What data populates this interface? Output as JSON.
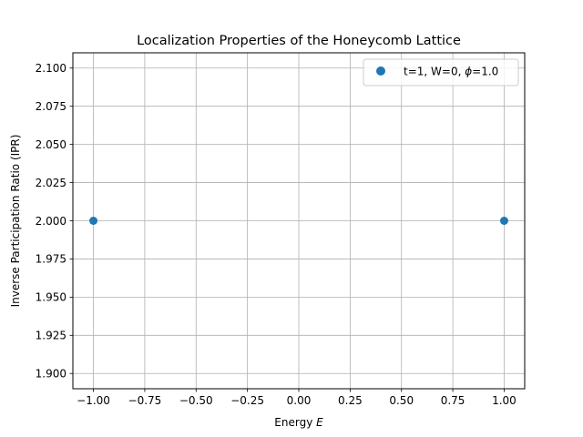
{
  "chart_data": {
    "type": "scatter",
    "title": "Localization Properties of the Honeycomb Lattice",
    "xlabel_text": "Energy ",
    "xlabel_var": "E",
    "ylabel": "Inverse Participation Ratio (IPR)",
    "xlim": [
      -1.1,
      1.1
    ],
    "ylim": [
      1.89,
      2.11
    ],
    "xticks": [
      -1.0,
      -0.75,
      -0.5,
      -0.25,
      0.0,
      0.25,
      0.5,
      0.75,
      1.0
    ],
    "xtick_labels": [
      "−1.00",
      "−0.75",
      "−0.50",
      "−0.25",
      "0.00",
      "0.25",
      "0.50",
      "0.75",
      "1.00"
    ],
    "yticks": [
      1.9,
      1.925,
      1.95,
      1.975,
      2.0,
      2.025,
      2.05,
      2.075,
      2.1
    ],
    "ytick_labels": [
      "1.900",
      "1.925",
      "1.950",
      "1.975",
      "2.000",
      "2.025",
      "2.050",
      "2.075",
      "2.100"
    ],
    "grid": true,
    "legend_position": "top-right",
    "series": [
      {
        "legend_prefix": "t=1, W=0, ",
        "legend_var": "ϕ",
        "legend_suffix": "=1.0",
        "color": "#1f77b4",
        "points": [
          {
            "x": -1.0,
            "y": 2.0
          },
          {
            "x": 1.0,
            "y": 2.0
          }
        ]
      }
    ]
  }
}
